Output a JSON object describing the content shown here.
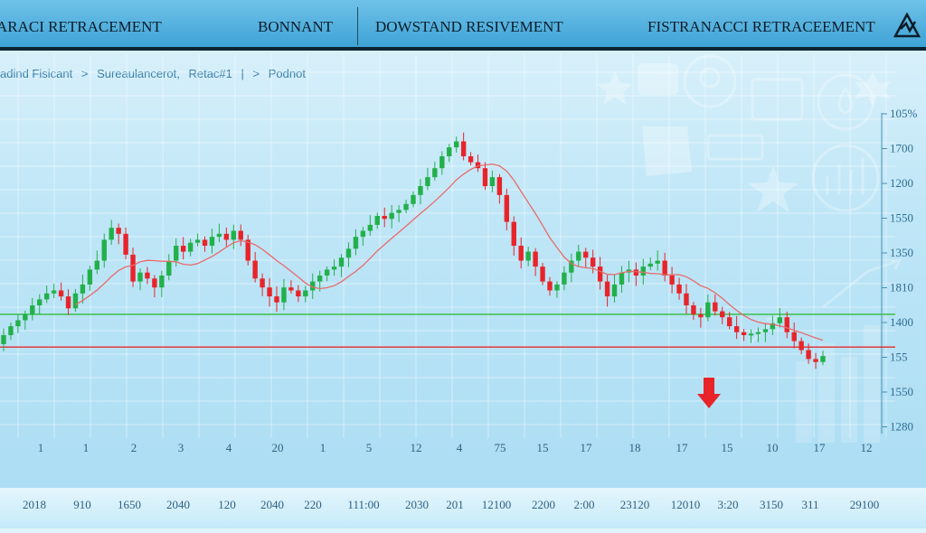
{
  "header": {
    "tab1": "ARACI RETRACEMENT",
    "tab2": "BONNANT",
    "tab3": "DOWSTAND RESIVEMENT",
    "tab4": "FISTRANACCI RETRACEEMENT"
  },
  "breadcrumb": [
    "adind Fisicant",
    ">",
    "Sureaulancerot,",
    "Retac#1",
    "|",
    ">",
    "Podnot"
  ],
  "colors": {
    "up": "#22b04b",
    "down": "#e8242a",
    "ma": "#e86a6a",
    "support": "#2ebd3a",
    "resistance": "#e8282a"
  },
  "icons": [
    "star-icon",
    "portrait-icon",
    "film-icon",
    "water-drop-icon",
    "maple-leaf-icon",
    "handshake-icon",
    "card-icon",
    "bar-chart-icon",
    "trend-arrow-icon",
    "up-arrow-icon"
  ],
  "chart_data": {
    "type": "candlestick",
    "title": "",
    "ylabel": "",
    "xlabel": "",
    "ylim": [
      0,
      100
    ],
    "grid": true,
    "y_tick_labels": [
      "105%",
      "1700",
      "1200",
      "1550",
      "1350",
      "1810",
      "1400",
      "155",
      "1550",
      "1280"
    ],
    "x_tick_labels_row1": [
      "1",
      "1",
      "2",
      "3",
      "4",
      "20",
      "1",
      "5",
      "12",
      "4",
      "75",
      "15",
      "17",
      "18",
      "17",
      "15",
      "10",
      "17",
      "12"
    ],
    "x_tick_labels_row2": [
      "2018",
      "910",
      "1650",
      "2040",
      "120",
      "2040",
      "220",
      "111:00",
      "2030",
      "201",
      "12100",
      "2200",
      "2:00",
      "23120",
      "12010",
      "3:20",
      "3150",
      "311",
      "29100"
    ],
    "levels": [
      {
        "name": "support",
        "value": 37
      },
      {
        "name": "resistance",
        "value": 26
      }
    ],
    "annotations": [
      "down-arrow"
    ],
    "closes": [
      30,
      33,
      35,
      37,
      40,
      42,
      44,
      45,
      43,
      39,
      44,
      47,
      52,
      55,
      62,
      66,
      64,
      57,
      48,
      51,
      49,
      46,
      50,
      55,
      60,
      58,
      61,
      62,
      60,
      63,
      64,
      62,
      65,
      62,
      55,
      49,
      46,
      43,
      41,
      46,
      45,
      43,
      45,
      48,
      50,
      52,
      53,
      56,
      59,
      63,
      65,
      67,
      70,
      69,
      71,
      72,
      74,
      77,
      80,
      83,
      86,
      90,
      93,
      95,
      90,
      88,
      86,
      80,
      83,
      77,
      68,
      60,
      55,
      58,
      53,
      48,
      45,
      47,
      51,
      55,
      58,
      56,
      53,
      48,
      43,
      47,
      51,
      52,
      50,
      53,
      54,
      55,
      50,
      47,
      44,
      40,
      37,
      36,
      41,
      38,
      36,
      33,
      31,
      30,
      30.5,
      31,
      32,
      34,
      36,
      31,
      28,
      25,
      22,
      21,
      23
    ]
  }
}
